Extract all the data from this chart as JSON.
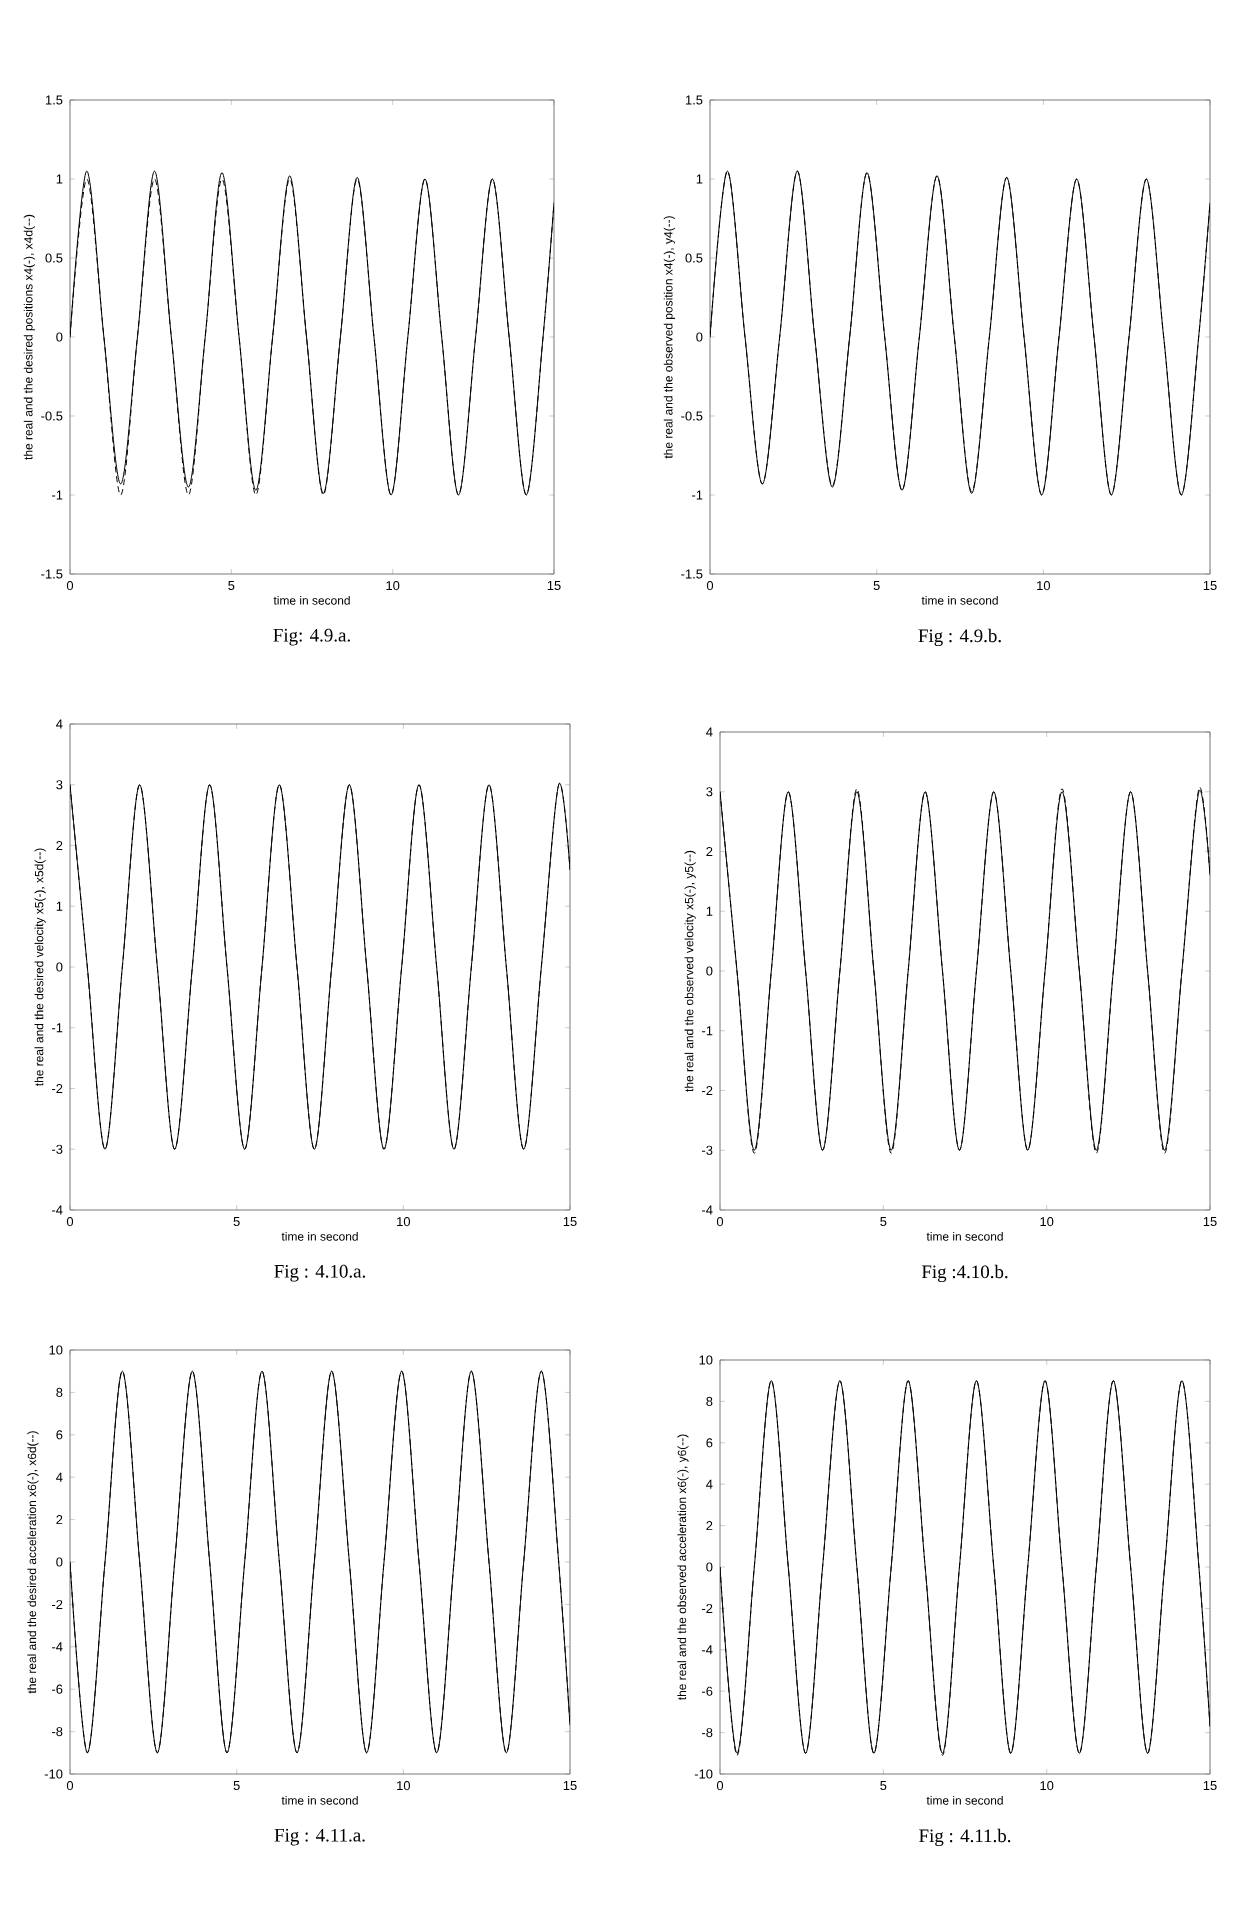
{
  "chart_data": [
    {
      "type": "line",
      "title": "Fig:  4.9.a.",
      "xlabel": "time in second",
      "ylabel": "the real and the desired positions x4(-), x4d(--)",
      "x": [
        0,
        0.52,
        1.05,
        1.57,
        2.09,
        2.62,
        3.14,
        3.67,
        4.19,
        4.71,
        5.24,
        5.76,
        6.28,
        6.81,
        7.33,
        7.85,
        8.38,
        8.9,
        9.42,
        9.95,
        10.47,
        11,
        11.52,
        12.04,
        12.57,
        13.09,
        13.61,
        14.14,
        14.66,
        15
      ],
      "xlim": [
        0,
        15
      ],
      "xticks": [
        0,
        5,
        10,
        15
      ],
      "ylim": [
        -1.5,
        1.5
      ],
      "yticks": [
        -1.5,
        -1,
        -0.5,
        0,
        0.5,
        1,
        1.5
      ],
      "series": [
        {
          "color": "#000000",
          "line_style": "solid",
          "values": [
            0,
            1.05,
            0,
            -0.93,
            0,
            1.05,
            0,
            -0.95,
            0,
            1.04,
            0,
            -0.97,
            0,
            1.02,
            0,
            -0.99,
            0,
            1.01,
            0,
            -1,
            0,
            1,
            0,
            -1,
            0,
            1,
            0,
            -1,
            0,
            0.85
          ]
        },
        {
          "color": "#000000",
          "line_style": "dashed",
          "values": [
            0,
            1,
            0,
            -1,
            0,
            1,
            0,
            -1,
            0,
            1,
            0,
            -1,
            0,
            1,
            0,
            -1,
            0,
            1,
            0,
            -1,
            0,
            1,
            0,
            -1,
            0,
            1,
            0,
            -1,
            0,
            0.85
          ]
        }
      ]
    },
    {
      "type": "line",
      "title": "Fig : 4.9.b.",
      "xlabel": "time in second",
      "ylabel": "the real and the observed position x4(-), y4(--)",
      "x": [
        0,
        0.52,
        1.05,
        1.57,
        2.09,
        2.62,
        3.14,
        3.67,
        4.19,
        4.71,
        5.24,
        5.76,
        6.28,
        6.81,
        7.33,
        7.85,
        8.38,
        8.9,
        9.42,
        9.95,
        10.47,
        11,
        11.52,
        12.04,
        12.57,
        13.09,
        13.61,
        14.14,
        14.66,
        15
      ],
      "xlim": [
        0,
        15
      ],
      "xticks": [
        0,
        5,
        10,
        15
      ],
      "ylim": [
        -1.5,
        1.5
      ],
      "yticks": [
        -1.5,
        -1,
        -0.5,
        0,
        0.5,
        1,
        1.5
      ],
      "series": [
        {
          "color": "#000000",
          "line_style": "solid",
          "values": [
            0,
            1.05,
            0,
            -0.93,
            0,
            1.05,
            0,
            -0.95,
            0,
            1.04,
            0,
            -0.97,
            0,
            1.02,
            0,
            -0.99,
            0,
            1.01,
            0,
            -1,
            0,
            1,
            0,
            -1,
            0,
            1,
            0,
            -1,
            0,
            0.85
          ]
        },
        {
          "color": "#000000",
          "line_style": "dashed",
          "values": [
            0,
            1.05,
            0,
            -0.93,
            0,
            1.05,
            0,
            -0.94,
            0,
            1.04,
            0,
            -0.97,
            0,
            1.02,
            0,
            -0.98,
            0,
            1.01,
            0,
            -1,
            0,
            1,
            0,
            -1,
            0,
            1,
            0,
            -1,
            0,
            0.85
          ]
        }
      ]
    },
    {
      "type": "line",
      "title": "Fig : 4.10.a.",
      "xlabel": "time in second",
      "ylabel": "the real and the desired velocity x5(-), x5d(--)",
      "x": [
        0,
        0.52,
        1.05,
        1.57,
        2.09,
        2.62,
        3.14,
        3.67,
        4.19,
        4.71,
        5.24,
        5.76,
        6.28,
        6.81,
        7.33,
        7.85,
        8.38,
        8.9,
        9.42,
        9.95,
        10.47,
        11,
        11.52,
        12.04,
        12.57,
        13.09,
        13.61,
        14.14,
        14.66,
        15
      ],
      "xlim": [
        0,
        15
      ],
      "xticks": [
        0,
        5,
        10,
        15
      ],
      "ylim": [
        -4,
        4
      ],
      "yticks": [
        -4,
        -3,
        -2,
        -1,
        0,
        1,
        2,
        3,
        4
      ],
      "series": [
        {
          "color": "#000000",
          "line_style": "solid",
          "values": [
            3,
            0,
            -3,
            0,
            3,
            0,
            -3,
            0,
            3,
            0,
            -3,
            0,
            3,
            0,
            -3,
            0,
            3,
            0,
            -3,
            0,
            3,
            0,
            -3,
            0,
            3,
            0,
            -3,
            0,
            3,
            1.6
          ]
        },
        {
          "color": "#000000",
          "line_style": "dashed",
          "values": [
            3,
            0,
            -3,
            0,
            3,
            0,
            -3,
            0,
            3,
            0,
            -3,
            0,
            3,
            0,
            -3,
            0,
            3,
            0,
            -3,
            0,
            3,
            0,
            -3,
            0,
            3,
            0,
            -3,
            0,
            3,
            1.6
          ]
        }
      ]
    },
    {
      "type": "line",
      "title": "Fig :4.10.b.",
      "xlabel": "time in second",
      "ylabel": "the real and the observed velocity x5(-), y5(--)",
      "x": [
        0,
        0.52,
        1.05,
        1.57,
        2.09,
        2.62,
        3.14,
        3.67,
        4.19,
        4.71,
        5.24,
        5.76,
        6.28,
        6.81,
        7.33,
        7.85,
        8.38,
        8.9,
        9.42,
        9.95,
        10.47,
        11,
        11.52,
        12.04,
        12.57,
        13.09,
        13.61,
        14.14,
        14.66,
        15
      ],
      "xlim": [
        0,
        15
      ],
      "xticks": [
        0,
        5,
        10,
        15
      ],
      "ylim": [
        -4,
        4
      ],
      "yticks": [
        -4,
        -3,
        -2,
        -1,
        0,
        1,
        2,
        3,
        4
      ],
      "series": [
        {
          "color": "#000000",
          "line_style": "solid",
          "values": [
            3,
            0,
            -3,
            0,
            3,
            0,
            -3,
            0,
            3,
            0,
            -3,
            0,
            3,
            0,
            -3,
            0,
            3,
            0,
            -3,
            0,
            3,
            0,
            -3,
            0,
            3,
            0,
            -3,
            0,
            3,
            1.6
          ]
        },
        {
          "color": "#000000",
          "line_style": "dashed",
          "values": [
            3,
            0,
            -3.05,
            0,
            3,
            0,
            -3,
            0,
            3.05,
            0,
            -3.05,
            0,
            3,
            0,
            -3,
            0,
            3,
            0,
            -3,
            0,
            3.05,
            0,
            -3.05,
            0,
            3,
            0,
            -3.05,
            0,
            3.05,
            1.6
          ]
        }
      ]
    },
    {
      "type": "line",
      "title": "Fig : 4.11.a.",
      "xlabel": "time in second",
      "ylabel": "the real and the desired acceleration x6(-), x6d(--)",
      "x": [
        0,
        0.52,
        1.05,
        1.57,
        2.09,
        2.62,
        3.14,
        3.67,
        4.19,
        4.71,
        5.24,
        5.76,
        6.28,
        6.81,
        7.33,
        7.85,
        8.38,
        8.9,
        9.42,
        9.95,
        10.47,
        11,
        11.52,
        12.04,
        12.57,
        13.09,
        13.61,
        14.14,
        14.66,
        15
      ],
      "xlim": [
        0,
        15
      ],
      "xticks": [
        0,
        5,
        10,
        15
      ],
      "ylim": [
        -10,
        10
      ],
      "yticks": [
        -10,
        -8,
        -6,
        -4,
        -2,
        0,
        2,
        4,
        6,
        8,
        10
      ],
      "series": [
        {
          "color": "#000000",
          "line_style": "solid",
          "values": [
            0,
            -9,
            0,
            9,
            0,
            -9,
            0,
            9,
            0,
            -9,
            0,
            9,
            0,
            -9,
            0,
            9,
            0,
            -9,
            0,
            9,
            0,
            -9,
            0,
            9,
            0,
            -9,
            0,
            9,
            0,
            -7.7
          ]
        },
        {
          "color": "#000000",
          "line_style": "dashed",
          "values": [
            0,
            -9,
            0,
            9,
            0,
            -9,
            0,
            9,
            0,
            -9,
            0,
            9,
            0,
            -9,
            0,
            9,
            0,
            -9,
            0,
            9,
            0,
            -9,
            0,
            9,
            0,
            -9,
            0,
            9,
            0,
            -7.7
          ]
        }
      ]
    },
    {
      "type": "line",
      "title": "Fig : 4.11.b.",
      "xlabel": "time in second",
      "ylabel": "the real and the observed acceleration x6(-), y6(--)",
      "x": [
        0,
        0.52,
        1.05,
        1.57,
        2.09,
        2.62,
        3.14,
        3.67,
        4.19,
        4.71,
        5.24,
        5.76,
        6.28,
        6.81,
        7.33,
        7.85,
        8.38,
        8.9,
        9.42,
        9.95,
        10.47,
        11,
        11.52,
        12.04,
        12.57,
        13.09,
        13.61,
        14.14,
        14.66,
        15
      ],
      "xlim": [
        0,
        15
      ],
      "xticks": [
        0,
        5,
        10,
        15
      ],
      "ylim": [
        -10,
        10
      ],
      "yticks": [
        -10,
        -8,
        -6,
        -4,
        -2,
        0,
        2,
        4,
        6,
        8,
        10
      ],
      "series": [
        {
          "color": "#000000",
          "line_style": "solid",
          "values": [
            0,
            -9,
            0,
            9,
            0,
            -9,
            0,
            9,
            0,
            -9,
            0,
            9,
            0,
            -9,
            0,
            9,
            0,
            -9,
            0,
            9,
            0,
            -9,
            0,
            9,
            0,
            -9,
            0,
            9,
            0,
            -7.7
          ]
        },
        {
          "color": "#000000",
          "line_style": "dashed",
          "values": [
            0,
            -9.1,
            0,
            9,
            0,
            -9,
            0,
            9,
            0,
            -9,
            0,
            9,
            0,
            -9.1,
            0,
            9,
            0,
            -9,
            0,
            9,
            0,
            -9,
            0,
            9,
            0,
            -9,
            0,
            9,
            0,
            -7.7
          ]
        }
      ]
    }
  ]
}
